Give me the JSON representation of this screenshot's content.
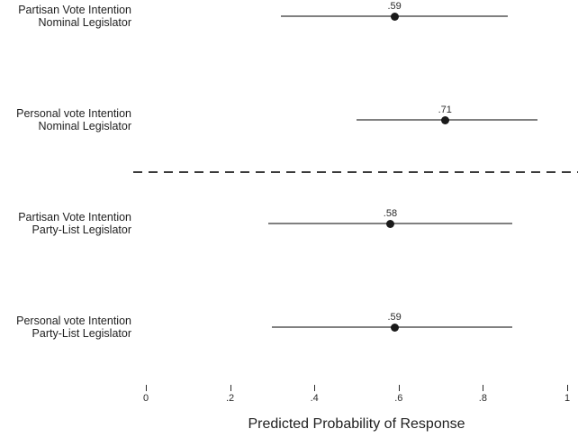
{
  "chart_data": {
    "type": "scatter",
    "subtype": "dot-with-confidence-intervals",
    "title": "",
    "xlabel": "Predicted Probability of Response",
    "ylabel": "",
    "xlim": [
      0,
      1
    ],
    "x_tick_labels": [
      "0",
      ".2",
      ".4",
      ".6",
      ".8",
      "1"
    ],
    "x_tick_values": [
      0,
      0.2,
      0.4,
      0.6,
      0.8,
      1
    ],
    "grid": false,
    "legend": "none",
    "rows": [
      {
        "label_line1": "Partisan Vote Intention",
        "label_line2": "Nominal Legislator",
        "estimate": 0.59,
        "estimate_label": ".59",
        "ci_low": 0.32,
        "ci_high": 0.86,
        "group": "Nominal Legislator"
      },
      {
        "label_line1": "Personal vote Intention",
        "label_line2": "Nominal Legislator",
        "estimate": 0.71,
        "estimate_label": ".71",
        "ci_low": 0.5,
        "ci_high": 0.93,
        "group": "Nominal Legislator"
      },
      {
        "label_line1": "Partisan Vote Intention",
        "label_line2": "Party-List Legislator",
        "estimate": 0.58,
        "estimate_label": ".58",
        "ci_low": 0.29,
        "ci_high": 0.87,
        "group": "Party-List Legislator"
      },
      {
        "label_line1": "Personal vote Intention",
        "label_line2": "Party-List Legislator",
        "estimate": 0.59,
        "estimate_label": ".59",
        "ci_low": 0.3,
        "ci_high": 0.87,
        "group": "Party-List Legislator"
      }
    ],
    "separator": {
      "style": "dashed",
      "between_groups": [
        "Nominal Legislator",
        "Party-List Legislator"
      ]
    },
    "colors": {
      "point": "#1a1a1a",
      "ci_line": "#808080",
      "text": "#1f1f1f",
      "separator": "#3a3a3a",
      "background": "#ffffff"
    }
  }
}
